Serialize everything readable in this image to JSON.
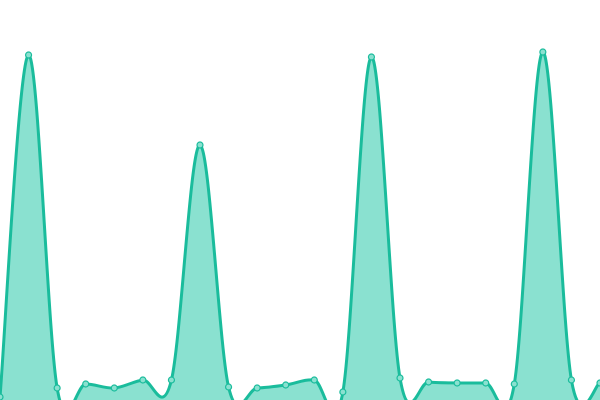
{
  "chart_data": {
    "type": "area",
    "title": "",
    "xlabel": "",
    "ylabel": "",
    "x": [
      0,
      1,
      2,
      3,
      4,
      5,
      6,
      7,
      8,
      9,
      10,
      11,
      12,
      13,
      14,
      15,
      16,
      17,
      18,
      19,
      20,
      21
    ],
    "values": [
      3,
      345,
      12,
      16,
      12,
      20,
      20,
      255,
      13,
      12,
      15,
      20,
      8,
      343,
      22,
      18,
      17,
      17,
      16,
      348,
      20,
      17
    ],
    "ylim": [
      0,
      400
    ],
    "grid": false,
    "axes_visible": false,
    "smooth": true,
    "colors": {
      "line": "#1abc9c",
      "fill": "#8ae1d0",
      "marker": "#8ae1d0"
    }
  }
}
